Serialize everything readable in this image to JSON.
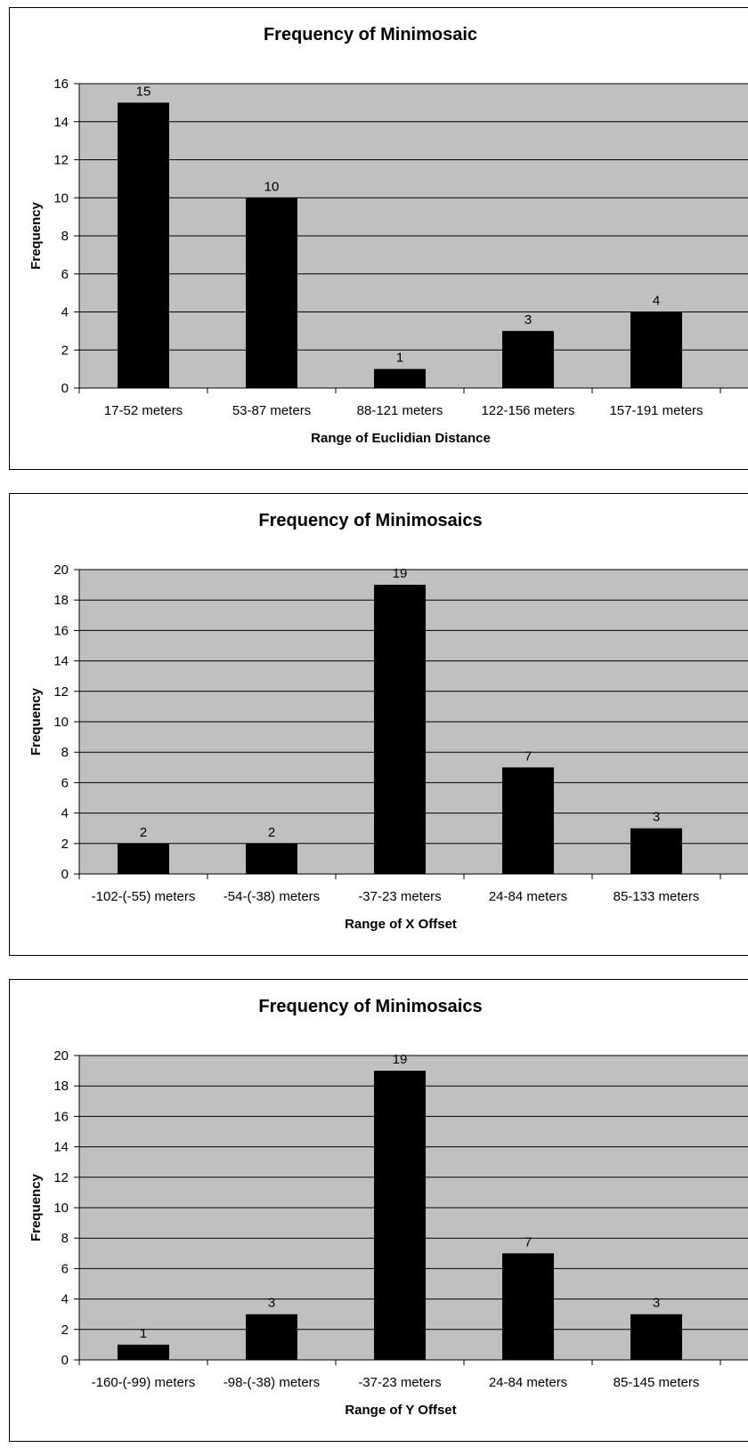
{
  "chart_data": [
    {
      "type": "bar",
      "title": "Frequency of Minimosaic",
      "xlabel": "Range of Euclidian Distance",
      "ylabel": "Frequency",
      "categories": [
        "17-52 meters",
        "53-87 meters",
        "88-121 meters",
        "122-156 meters",
        "157-191 meters"
      ],
      "values": [
        15,
        10,
        1,
        3,
        4
      ],
      "ylim": [
        0,
        16
      ],
      "yticks": [
        0,
        2,
        4,
        6,
        8,
        10,
        12,
        14,
        16
      ],
      "grid": true,
      "plot_background": "#c0c0c0",
      "bar_color": "#000000"
    },
    {
      "type": "bar",
      "title": "Frequency of Minimosaics",
      "xlabel": "Range of X Offset",
      "ylabel": "Frequency",
      "categories": [
        "-102-(-55) meters",
        "-54-(-38) meters",
        "-37-23 meters",
        "24-84 meters",
        "85-133 meters"
      ],
      "values": [
        2,
        2,
        19,
        7,
        3
      ],
      "ylim": [
        0,
        20
      ],
      "yticks": [
        0,
        2,
        4,
        6,
        8,
        10,
        12,
        14,
        16,
        18,
        20
      ],
      "grid": true,
      "plot_background": "#c0c0c0",
      "bar_color": "#000000"
    },
    {
      "type": "bar",
      "title": "Frequency of Minimosaics",
      "xlabel": "Range of Y Offset",
      "ylabel": "Frequency",
      "categories": [
        "-160-(-99) meters",
        "-98-(-38) meters",
        "-37-23 meters",
        "24-84 meters",
        "85-145 meters"
      ],
      "values": [
        1,
        3,
        19,
        7,
        3
      ],
      "ylim": [
        0,
        20
      ],
      "yticks": [
        0,
        2,
        4,
        6,
        8,
        10,
        12,
        14,
        16,
        18,
        20
      ],
      "grid": true,
      "plot_background": "#c0c0c0",
      "bar_color": "#000000"
    }
  ]
}
